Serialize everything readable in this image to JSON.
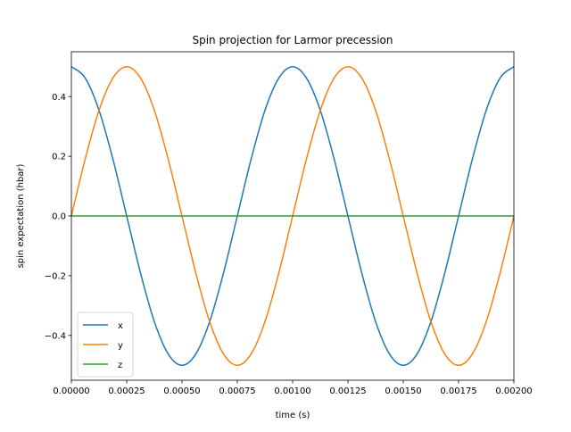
{
  "chart_data": {
    "type": "line",
    "title": "Spin projection for Larmor precession",
    "xlabel": "time (s)",
    "ylabel": "spin expectation (hbar)",
    "xlim": [
      0,
      0.002
    ],
    "ylim": [
      -0.55,
      0.55
    ],
    "xticks": [
      0,
      0.00025,
      0.0005,
      0.00075,
      0.001,
      0.00125,
      0.0015,
      0.00175,
      0.002
    ],
    "xtick_labels": [
      "0.00000",
      "0.00025",
      "0.00050",
      "0.00075",
      "0.00100",
      "0.00125",
      "0.00150",
      "0.00175",
      "0.00200"
    ],
    "yticks": [
      -0.4,
      -0.2,
      0.0,
      0.2,
      0.4
    ],
    "ytick_labels": [
      "−0.4",
      "−0.2",
      "0.0",
      "0.2",
      "0.4"
    ],
    "grid": false,
    "legend": "lower-left",
    "x": [
      0,
      6.25e-05,
      0.000125,
      0.0001875,
      0.00025,
      0.0003125,
      0.000375,
      0.0004375,
      0.0005,
      0.0005625,
      0.000625,
      0.0006875,
      0.00075,
      0.0008125,
      0.000875,
      0.0009375,
      0.001,
      0.0010625,
      0.001125,
      0.0011875,
      0.00125,
      0.0013125,
      0.001375,
      0.0014375,
      0.0015,
      0.0015625,
      0.001625,
      0.0016875,
      0.00175,
      0.0018125,
      0.001875,
      0.0019375,
      0.002
    ],
    "series": [
      {
        "name": "x",
        "color": "#1f77b4",
        "values": [
          0.5,
          0.462,
          0.354,
          0.191,
          0.0,
          -0.191,
          -0.354,
          -0.462,
          -0.5,
          -0.462,
          -0.354,
          -0.191,
          0.0,
          0.191,
          0.354,
          0.462,
          0.5,
          0.462,
          0.354,
          0.191,
          0.0,
          -0.191,
          -0.354,
          -0.462,
          -0.5,
          -0.462,
          -0.354,
          -0.191,
          0.0,
          0.191,
          0.354,
          0.462,
          0.5
        ]
      },
      {
        "name": "y",
        "color": "#ff7f0e",
        "values": [
          0.0,
          0.191,
          0.354,
          0.462,
          0.5,
          0.462,
          0.354,
          0.191,
          0.0,
          -0.191,
          -0.354,
          -0.462,
          -0.5,
          -0.462,
          -0.354,
          -0.191,
          0.0,
          0.191,
          0.354,
          0.462,
          0.5,
          0.462,
          0.354,
          0.191,
          0.0,
          -0.191,
          -0.354,
          -0.462,
          -0.5,
          -0.462,
          -0.354,
          -0.191,
          0.0
        ]
      },
      {
        "name": "z",
        "color": "#2ca02c",
        "values": [
          0,
          0,
          0,
          0,
          0,
          0,
          0,
          0,
          0,
          0,
          0,
          0,
          0,
          0,
          0,
          0,
          0,
          0,
          0,
          0,
          0,
          0,
          0,
          0,
          0,
          0,
          0,
          0,
          0,
          0,
          0,
          0,
          0
        ]
      }
    ]
  }
}
